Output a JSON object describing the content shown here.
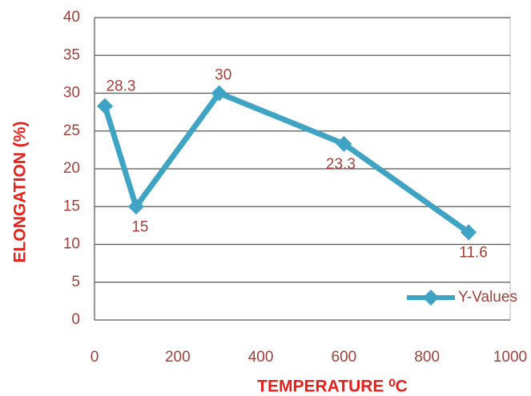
{
  "chart_data": {
    "type": "line",
    "x_label": "TEMPERATURE ⁰C",
    "y_label": "ELONGATION (%)",
    "series": [
      {
        "name": "Y-Values",
        "color": "#3fa3c4",
        "x": [
          25,
          100,
          300,
          600,
          900
        ],
        "values": [
          28.3,
          15,
          30,
          23.3,
          11.6
        ]
      }
    ],
    "xlim": [
      0,
      1000
    ],
    "xticks": [
      0,
      200,
      400,
      600,
      800,
      1000
    ],
    "ylim": [
      0,
      40
    ],
    "yticks": [
      0,
      5,
      10,
      15,
      20,
      25,
      30,
      35,
      40
    ],
    "grid": true,
    "legend": "lower right"
  }
}
